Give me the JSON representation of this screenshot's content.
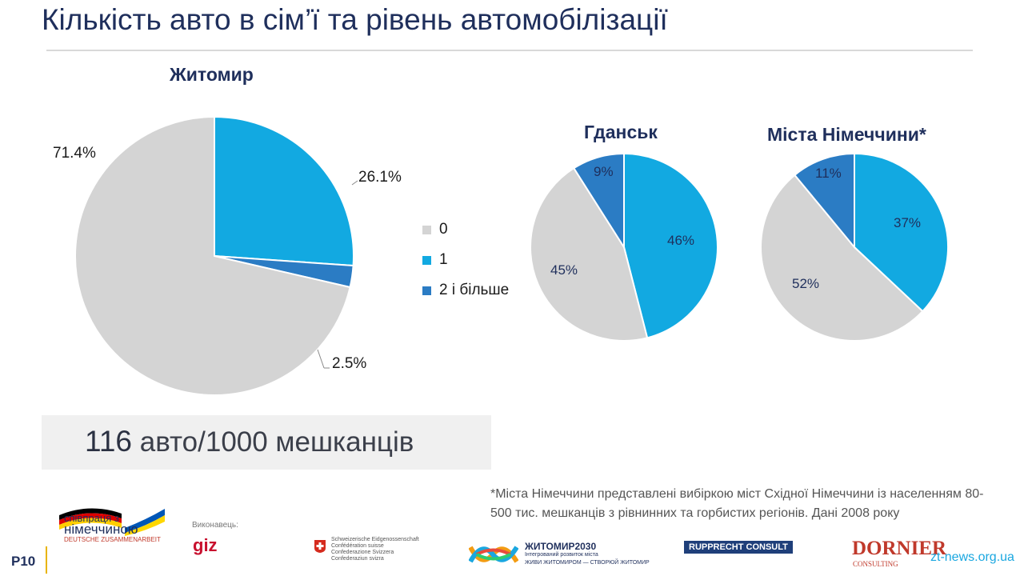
{
  "title": "Кількість авто в сім’ї та рівень автомобілізації",
  "chart_data": [
    {
      "type": "pie",
      "title": "Житомир",
      "categories": [
        "0",
        "1",
        "2 і більше"
      ],
      "values": [
        71.4,
        26.1,
        2.5
      ],
      "labels": [
        "71.4%",
        "26.1%",
        "2.5%"
      ]
    },
    {
      "type": "pie",
      "title": "Гданськ",
      "categories": [
        "0",
        "1",
        "2 і більше"
      ],
      "values": [
        45,
        46,
        9
      ],
      "labels": [
        "45%",
        "46%",
        "9%"
      ]
    },
    {
      "type": "pie",
      "title": "Міста Німеччини*",
      "categories": [
        "0",
        "1",
        "2 і більше"
      ],
      "values": [
        52,
        37,
        11
      ],
      "labels": [
        "52%",
        "37%",
        "11%"
      ]
    }
  ],
  "legend": [
    {
      "label": "0",
      "color": "#d4d4d4"
    },
    {
      "label": "1",
      "color": "#12a9e1"
    },
    {
      "label": "2 і більше",
      "color": "#2b7cc4"
    }
  ],
  "stat": {
    "number": "116",
    "text": "авто/1000 мешканців"
  },
  "footnote": "*Міста Німеччини представлені вибіркою міст Східної Німеччини із населенням 80-500 тис. мешканців з рівнинних та горбистих регіонів. Дані 2008 року",
  "page_number": "P10",
  "logos": {
    "cooperation": {
      "line1": "співпраця з",
      "line2": "німеччиною",
      "line3": "DEUTSCHE ZUSAMMENARBEIT"
    },
    "executor_label": "Виконавець:",
    "giz": "giz",
    "swiss": [
      "Schweizerische Eidgenossenschaft",
      "Confédération suisse",
      "Confederazione Svizzera",
      "Confederaziun svizra"
    ],
    "zhytomyr2030": {
      "name": "ЖИТОМИР2030",
      "sub1": "Інтегрований розвиток міста",
      "sub2": "ЖИВИ ЖИТОМИРОМ — СТВОРЮЙ ЖИТОМИР"
    },
    "rupprecht": "RUPPRECHT CONSULT",
    "dornier": "DORNIER",
    "dornier_sub": "CONSULTING"
  },
  "watermark": "zt-news.org.ua"
}
